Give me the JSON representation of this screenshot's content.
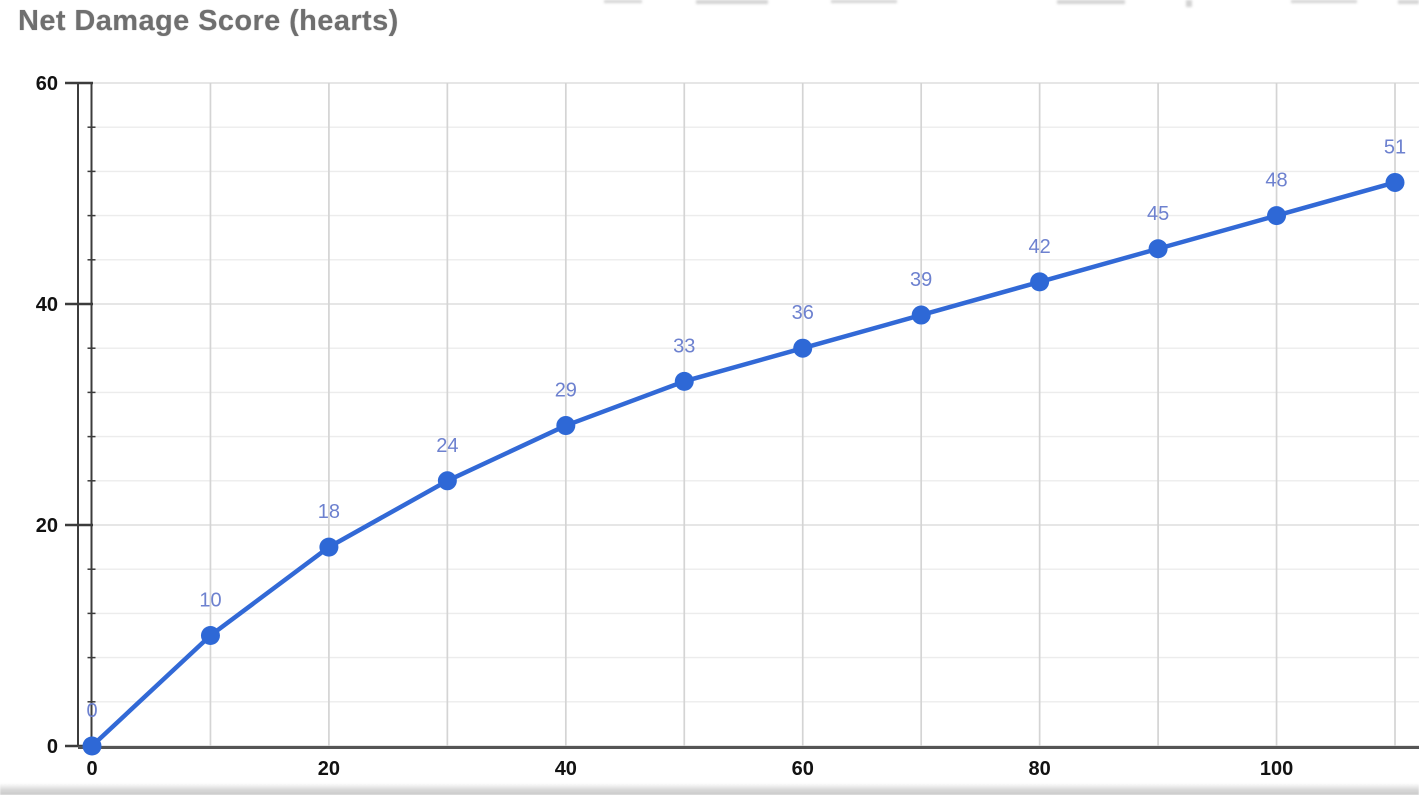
{
  "chart": {
    "title": "Net Damage Score (hearts)"
  },
  "chart_data": {
    "type": "line",
    "title": "Net Damage Score (hearts)",
    "x": [
      0,
      10,
      20,
      30,
      40,
      50,
      60,
      70,
      80,
      90,
      100,
      110
    ],
    "values": [
      0,
      10,
      18,
      24,
      29,
      33,
      36,
      39,
      42,
      45,
      48,
      51
    ],
    "point_labels": [
      "0",
      "10",
      "18",
      "24",
      "29",
      "33",
      "36",
      "39",
      "42",
      "45",
      "48",
      "51"
    ],
    "xlabel": "",
    "ylabel": "",
    "xlim": [
      0,
      110
    ],
    "ylim": [
      0,
      60
    ],
    "x_tick_labels": [
      0,
      20,
      40,
      60,
      80,
      100
    ],
    "y_tick_labels": [
      0,
      20,
      40,
      60
    ],
    "x_minor_step": 10,
    "y_minor_step": 4,
    "grid": true,
    "legend_position": "none",
    "colors": {
      "series": "#3269d6",
      "marker": "#2e68d6",
      "data_label": "#6d81cf",
      "title": "#6f6f6f",
      "axis_text": "#121212",
      "axis_line": "#3c3c3c",
      "x_axis_line": "#555555",
      "grid_vertical": "#d4d4d4",
      "grid_horizontal_minor": "#ececec",
      "grid_horizontal_major": "#dddddd",
      "background": "#ffffff"
    }
  }
}
